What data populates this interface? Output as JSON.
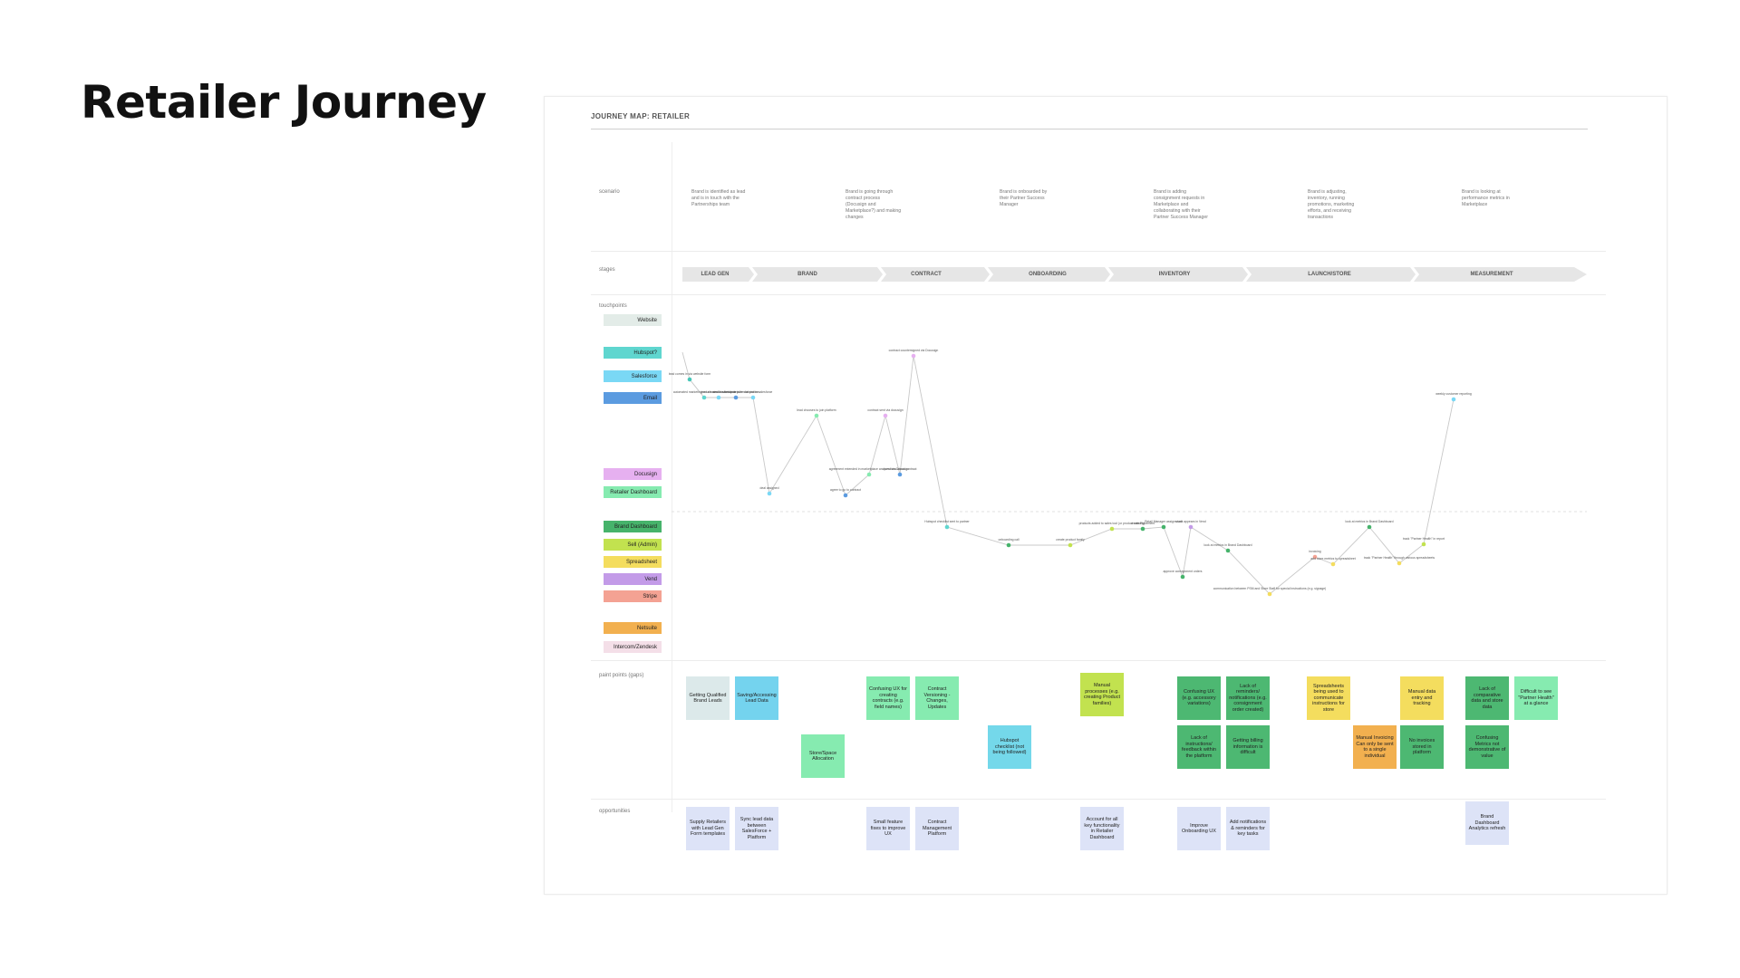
{
  "page": {
    "title": "Retailer Journey"
  },
  "board": {
    "header": "JOURNEY MAP:  RETAILER",
    "row_labels": {
      "scenario": "scenario",
      "stages": "stages",
      "touchpoints": "touchpoints",
      "pain_points": "paint points (gaps)",
      "opportunities": "opportunities"
    },
    "scenarios": [
      "Brand is identified as lead and is in touch with the Partnerships team",
      "Brand is going through contract process (Docusign and Marketplace?) and making changes",
      "Brand is onboarded by their Partner Success Manager",
      "Brand is adding consignment requests in Marketplace and collaborating with their Partner Success Manager",
      "Brand is adjusting, inventory, running promotions, marketing efforts, and receiving transactions",
      "Brand is looking at performance metrics in Marketplace"
    ],
    "stages": [
      "LEAD GEN",
      "BRAND",
      "CONTRACT",
      "ONBOARDING",
      "INVENTORY",
      "LAUNCH/STORE",
      "MEASUREMENT"
    ],
    "touchpoints": [
      {
        "label": "Website",
        "color": "#e3ece8"
      },
      {
        "label": "Hubspot?",
        "color": "#5fd6cf"
      },
      {
        "label": "Salesforce",
        "color": "#7ad8f5"
      },
      {
        "label": "Email",
        "color": "#5b9be0"
      },
      {
        "label": "Docusign",
        "color": "#e6b0f0"
      },
      {
        "label": "Retailer Dashboard",
        "color": "#86ebb0"
      },
      {
        "label": "Brand Dashboard",
        "color": "#46b36b"
      },
      {
        "label": "Sell (Admin)",
        "color": "#c2e24f"
      },
      {
        "label": "Spreadsheet",
        "color": "#f4dd5e"
      },
      {
        "label": "Vend",
        "color": "#c39be8"
      },
      {
        "label": "Stripe",
        "color": "#f4a293"
      },
      {
        "label": "Netsuite",
        "color": "#f2b04f"
      },
      {
        "label": "Intercom/Zendesk",
        "color": "#f4dfe8"
      }
    ],
    "pain_points": [
      {
        "text": "Getting Qualified Brand Leads",
        "color": "#dce9ea"
      },
      {
        "text": "Saving/Accessing Lead Data",
        "color": "#74d3ee"
      },
      {
        "text": "Store/Space Allocation",
        "color": "#86ebb0"
      },
      {
        "text": "Confusing UX for creating contracts (e.g. field names)",
        "color": "#86ebb0"
      },
      {
        "text": "Contract Versioning - Changes, Updates",
        "color": "#86ebb0"
      },
      {
        "text": "Hubspot checklist (not being followed)",
        "color": "#74d8ea"
      },
      {
        "text": "Manual processes (e.g. creating Product families)",
        "color": "#c2e24f"
      },
      {
        "text": "Confusing UX (e.g. accessory variations)",
        "color": "#4db872"
      },
      {
        "text": "Lack of reminders/ notifications (e.g. consignment order created)",
        "color": "#4db872"
      },
      {
        "text": "Lack of instructions/ feedback within the platform",
        "color": "#4db872"
      },
      {
        "text": "Getting billing information is difficult",
        "color": "#4db872"
      },
      {
        "text": "Spreadsheets being used to communicate instructions for store",
        "color": "#f4dd5e"
      },
      {
        "text": "Manual Invoicing Can only be sent to a single individual",
        "color": "#f2b04f"
      },
      {
        "text": "Manual data entry and tracking",
        "color": "#f4dd5e"
      },
      {
        "text": "No invoices stored in platform",
        "color": "#4db872"
      },
      {
        "text": "Lack of comparative data and store data",
        "color": "#4db872"
      },
      {
        "text": "Confusing Metrics not demonstrative of value",
        "color": "#4db872"
      },
      {
        "text": "Difficult to see \"Partner Health\" at a glance",
        "color": "#86ebb0"
      }
    ],
    "opportunities": [
      "Supply Retailers with Lead Gen Form templates",
      "Sync lead data between SalesForce + Platform",
      "Small feature fixes to improve UX",
      "Contract Management Platform",
      "Account for all key functionality in Retailer Dashboard",
      "Improve Onboarding UX",
      "Add notifications & reminders for key tasks",
      "Brand Dashboard Analytics refresh"
    ],
    "journey_steps": [
      {
        "label": "lead comes in via website form",
        "color": "#46c6b8"
      },
      {
        "label": "automated marketing emails sent via hubspot",
        "color": "#5fd6cf"
      },
      {
        "label": "lead created in salesforce",
        "color": "#7ad8f5"
      },
      {
        "label": "email outreach to potential partner",
        "color": "#5b9be0"
      },
      {
        "label": "retailer created in salesforce",
        "color": "#7ad8f5"
      },
      {
        "label": "deal assigned",
        "color": "#7ad8f5"
      },
      {
        "label": "lead chooses to join platform",
        "color": "#86ebb0"
      },
      {
        "label": "agree to go to contract",
        "color": "#5b9be0"
      },
      {
        "label": "agreement extended in marketplace and sent via Docusign",
        "color": "#86ebb0"
      },
      {
        "label": "contract sent via docusign",
        "color": "#e6b0f0"
      },
      {
        "label": "questions about contract",
        "color": "#5b9be0"
      },
      {
        "label": "contract countersigned via Docusign",
        "color": "#e6b0f0"
      },
      {
        "label": "Hubspot checklist sent to partner",
        "color": "#5fd6cf"
      },
      {
        "label": "onboarding call",
        "color": "#46b36b"
      },
      {
        "label": "create product family",
        "color": "#c2e24f"
      },
      {
        "label": "products added to sales tool (or product catalog)",
        "color": "#c2e24f"
      },
      {
        "label": "create Placement",
        "color": "#46b36b"
      },
      {
        "label": "Retail Manager assigns unit",
        "color": "#46b36b"
      },
      {
        "label": "approve consignment orders",
        "color": "#46b36b"
      },
      {
        "label": "stock appears in Vend",
        "color": "#c39be8"
      },
      {
        "label": "look at metrics in Brand Dashboard",
        "color": "#46b36b"
      },
      {
        "label": "communication between PSM and Store Staff for special instructions (e.g. signage)",
        "color": "#f4dd5e"
      },
      {
        "label": "invoicing",
        "color": "#f4a293"
      },
      {
        "label": "add store metrics to spreadsheet",
        "color": "#f4dd5e"
      },
      {
        "label": "look at metrics in Brand Dashboard",
        "color": "#46b36b"
      },
      {
        "label": "track \"Partner Health\" through various spreadsheets",
        "color": "#f4dd5e"
      },
      {
        "label": "track \"Partner Health\" in report",
        "color": "#c2e24f"
      },
      {
        "label": "weekly customer reporting",
        "color": "#7ad8f5"
      }
    ]
  }
}
